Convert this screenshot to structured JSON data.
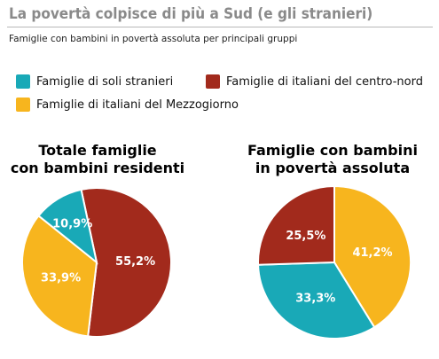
{
  "header": {
    "title": "La povertà colpisce di più a Sud (e gli stranieri)",
    "subtitle": "Famiglie con bambini in povertà assoluta per principali gruppi"
  },
  "colors": {
    "stranieri": "#19a9b7",
    "centro_nord": "#a22a1c",
    "mezzogiorno": "#f7b51e"
  },
  "chart_data": [
    {
      "type": "pie",
      "title": "Totale famiglie con bambini residenti",
      "title_lines": [
        "Totale famiglie",
        "con bambini residenti"
      ],
      "legend": [
        "Famiglie di soli stranieri",
        "Famiglie di italiani del centro-nord",
        "Famiglie di italiani del Mezzogiorno"
      ],
      "slices": [
        {
          "label": "Famiglie di italiani del centro-nord",
          "value": 55.2,
          "text": "55,2%",
          "color": "#a22a1c"
        },
        {
          "label": "Famiglie di italiani del Mezzogiorno",
          "value": 33.9,
          "text": "33,9%",
          "color": "#f7b51e"
        },
        {
          "label": "Famiglie di soli stranieri",
          "value": 10.9,
          "text": "10,9%",
          "color": "#19a9b7"
        }
      ]
    },
    {
      "type": "pie",
      "title": "Famiglie con bambini in povertà assoluta",
      "title_lines": [
        "Famiglie con bambini",
        "in povertà assoluta"
      ],
      "slices": [
        {
          "label": "Famiglie di italiani del Mezzogiorno",
          "value": 41.2,
          "text": "41,2%",
          "color": "#f7b51e"
        },
        {
          "label": "Famiglie di soli stranieri",
          "value": 33.3,
          "text": "33,3%",
          "color": "#19a9b7"
        },
        {
          "label": "Famiglie di italiani del centro-nord",
          "value": 25.5,
          "text": "25,5%",
          "color": "#a22a1c"
        }
      ]
    }
  ]
}
